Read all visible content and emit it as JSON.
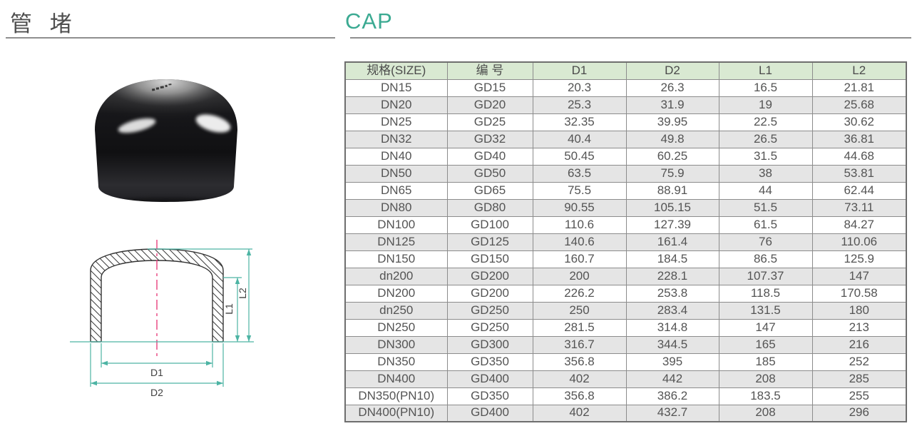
{
  "header": {
    "title_zh": "管 堵",
    "title_en": "CAP"
  },
  "colors": {
    "accent_teal": "#3BAA92",
    "rule_gray": "#8F8F8F",
    "table_header_bg": "#D9E9D2",
    "table_alt_row_bg": "#E5E5E5",
    "table_border": "#8C8C8C",
    "cell_text": "#545454",
    "dim_line": "#4DB4A4",
    "center_line": "#E8407E",
    "title_gray": "#4F4F4F"
  },
  "diagram": {
    "labels": {
      "d1": "D1",
      "d2": "D2",
      "l1": "L1",
      "l2": "L2"
    }
  },
  "chart_data": {
    "type": "table",
    "title": "CAP 管堵 dimensions",
    "categories": [
      "规格(SIZE)",
      "编 号",
      "D1",
      "D2",
      "L1",
      "L2"
    ],
    "rows": [
      [
        "DN15",
        "GD15",
        20.3,
        26.3,
        16.5,
        21.81
      ],
      [
        "DN20",
        "GD20",
        25.3,
        31.9,
        19,
        25.68
      ],
      [
        "DN25",
        "GD25",
        32.35,
        39.95,
        22.5,
        30.62
      ],
      [
        "DN32",
        "GD32",
        40.4,
        49.8,
        26.5,
        36.81
      ],
      [
        "DN40",
        "GD40",
        50.45,
        60.25,
        31.5,
        44.68
      ],
      [
        "DN50",
        "GD50",
        63.5,
        75.9,
        38,
        53.81
      ],
      [
        "DN65",
        "GD65",
        75.5,
        88.91,
        44,
        62.44
      ],
      [
        "DN80",
        "GD80",
        90.55,
        105.15,
        51.5,
        73.11
      ],
      [
        "DN100",
        "GD100",
        110.6,
        127.39,
        61.5,
        84.27
      ],
      [
        "DN125",
        "GD125",
        140.6,
        161.4,
        76,
        110.06
      ],
      [
        "DN150",
        "GD150",
        160.7,
        184.5,
        86.5,
        125.9
      ],
      [
        "dn200",
        "GD200",
        200,
        228.1,
        107.37,
        147
      ],
      [
        "DN200",
        "GD200",
        226.2,
        253.8,
        118.5,
        170.58
      ],
      [
        "dn250",
        "GD250",
        250,
        283.4,
        131.5,
        180
      ],
      [
        "DN250",
        "GD250",
        281.5,
        314.8,
        147,
        213
      ],
      [
        "DN300",
        "GD300",
        316.7,
        344.5,
        165,
        216
      ],
      [
        "DN350",
        "GD350",
        356.8,
        395,
        185,
        252
      ],
      [
        "DN400",
        "GD400",
        402,
        442,
        208,
        285
      ],
      [
        "DN350(PN10)",
        "GD350",
        356.8,
        386.2,
        183.5,
        255
      ],
      [
        "DN400(PN10)",
        "GD400",
        402,
        432.7,
        208,
        296
      ]
    ]
  },
  "table": {
    "headers": [
      "规格(SIZE)",
      "编 号",
      "D1",
      "D2",
      "L1",
      "L2"
    ],
    "rows": [
      [
        "DN15",
        "GD15",
        "20.3",
        "26.3",
        "16.5",
        "21.81"
      ],
      [
        "DN20",
        "GD20",
        "25.3",
        "31.9",
        "19",
        "25.68"
      ],
      [
        "DN25",
        "GD25",
        "32.35",
        "39.95",
        "22.5",
        "30.62"
      ],
      [
        "DN32",
        "GD32",
        "40.4",
        "49.8",
        "26.5",
        "36.81"
      ],
      [
        "DN40",
        "GD40",
        "50.45",
        "60.25",
        "31.5",
        "44.68"
      ],
      [
        "DN50",
        "GD50",
        "63.5",
        "75.9",
        "38",
        "53.81"
      ],
      [
        "DN65",
        "GD65",
        "75.5",
        "88.91",
        "44",
        "62.44"
      ],
      [
        "DN80",
        "GD80",
        "90.55",
        "105.15",
        "51.5",
        "73.11"
      ],
      [
        "DN100",
        "GD100",
        "110.6",
        "127.39",
        "61.5",
        "84.27"
      ],
      [
        "DN125",
        "GD125",
        "140.6",
        "161.4",
        "76",
        "110.06"
      ],
      [
        "DN150",
        "GD150",
        "160.7",
        "184.5",
        "86.5",
        "125.9"
      ],
      [
        "dn200",
        "GD200",
        "200",
        "228.1",
        "107.37",
        "147"
      ],
      [
        "DN200",
        "GD200",
        "226.2",
        "253.8",
        "118.5",
        "170.58"
      ],
      [
        "dn250",
        "GD250",
        "250",
        "283.4",
        "131.5",
        "180"
      ],
      [
        "DN250",
        "GD250",
        "281.5",
        "314.8",
        "147",
        "213"
      ],
      [
        "DN300",
        "GD300",
        "316.7",
        "344.5",
        "165",
        "216"
      ],
      [
        "DN350",
        "GD350",
        "356.8",
        "395",
        "185",
        "252"
      ],
      [
        "DN400",
        "GD400",
        "402",
        "442",
        "208",
        "285"
      ],
      [
        "DN350(PN10)",
        "GD350",
        "356.8",
        "386.2",
        "183.5",
        "255"
      ],
      [
        "DN400(PN10)",
        "GD400",
        "402",
        "432.7",
        "208",
        "296"
      ]
    ]
  }
}
